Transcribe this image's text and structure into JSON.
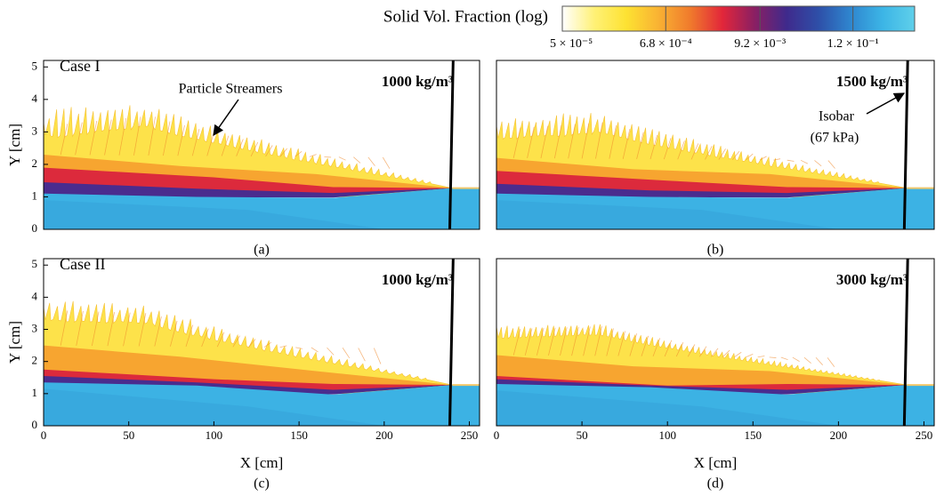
{
  "colorbar": {
    "title": "Solid Vol. Fraction (log)",
    "scale": "log",
    "lim": [
      3.9e-05,
      0.66
    ],
    "ticks": [
      {
        "value": 5e-05,
        "label": "5 × 10⁻⁵"
      },
      {
        "value": 0.00068,
        "label": "6.8 × 10⁻⁴"
      },
      {
        "value": 0.0092,
        "label": "9.2 × 10⁻³"
      },
      {
        "value": 0.12,
        "label": "1.2 × 10⁻¹"
      }
    ],
    "colors": [
      "#ffffff",
      "#fff176",
      "#fde232",
      "#f9b233",
      "#f07a2c",
      "#e2263a",
      "#8a1f63",
      "#3f2a8c",
      "#2e4fa8",
      "#2f86cf",
      "#3cb5e6",
      "#5fd0ea"
    ]
  },
  "chart_data": [
    {
      "type": "contour",
      "panel_label": "(a)",
      "case_label": "Case I",
      "density_label": "1000 kg/m³",
      "y_label": "Y [cm]",
      "annotations": [
        "Particle Streamers"
      ],
      "xlim": [
        0,
        256
      ],
      "ylim": [
        0,
        5.2
      ],
      "yticks": [
        0,
        1,
        2,
        3,
        4,
        5
      ]
    },
    {
      "type": "contour",
      "panel_label": "(b)",
      "density_label": "1500 kg/m³",
      "annotations": [
        "Isobar",
        "(67 kPa)"
      ],
      "xlim": [
        0,
        256
      ],
      "ylim": [
        0,
        5.2
      ]
    },
    {
      "type": "contour",
      "panel_label": "(c)",
      "case_label": "Case II",
      "density_label": "1000 kg/m³",
      "y_label": "Y [cm]",
      "x_label": "X [cm]",
      "xlim": [
        0,
        256
      ],
      "ylim": [
        0,
        5.2
      ],
      "xticks": [
        0,
        50,
        100,
        150,
        200,
        250
      ],
      "yticks": [
        0,
        1,
        2,
        3,
        4,
        5
      ]
    },
    {
      "type": "contour",
      "panel_label": "(d)",
      "density_label": "3000 kg/m³",
      "x_label": "X [cm]",
      "xlim": [
        0,
        256
      ],
      "ylim": [
        0,
        5.2
      ],
      "xticks": [
        0,
        50,
        100,
        150,
        200,
        250
      ]
    }
  ]
}
